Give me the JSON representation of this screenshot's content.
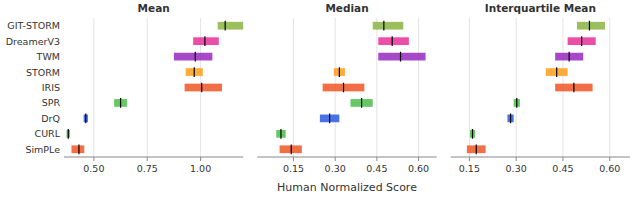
{
  "chart_data": [
    {
      "type": "bar",
      "orientation": "horizontal",
      "title": "Mean",
      "categories": [
        "GIT-STORM",
        "DreamerV3",
        "TWM",
        "STORM",
        "IRIS",
        "SPR",
        "DrQ",
        "CURL",
        "SimPLe"
      ],
      "values": [
        1.115,
        1.02,
        0.975,
        0.97,
        1.005,
        0.625,
        0.462,
        0.38,
        0.43
      ],
      "low": [
        1.08,
        0.965,
        0.875,
        0.93,
        0.925,
        0.595,
        0.452,
        0.372,
        0.395
      ],
      "high": [
        1.2,
        1.085,
        1.055,
        1.01,
        1.1,
        0.655,
        0.472,
        0.388,
        0.455
      ],
      "colors": [
        "#8db647",
        "#e8359a",
        "#9b2fc0",
        "#ffa020",
        "#f05a2a",
        "#50c050",
        "#3060e0",
        "#50c050",
        "#f05a2a"
      ],
      "xlim": [
        0.36,
        1.2
      ],
      "xticks": [
        {
          "value": 0.5,
          "label": "0.50"
        },
        0.75,
        {
          "value": 1.0,
          "label": "1.00"
        }
      ],
      "grid": true
    },
    {
      "type": "bar",
      "orientation": "horizontal",
      "title": "Median",
      "xlabel": "Human Normalized Score",
      "categories": [
        "GIT-STORM",
        "DreamerV3",
        "TWM",
        "STORM",
        "IRIS",
        "SPR",
        "DrQ",
        "CURL",
        "SimPLe"
      ],
      "values": [
        0.475,
        0.505,
        0.535,
        0.315,
        0.33,
        0.395,
        0.28,
        0.105,
        0.142
      ],
      "low": [
        0.435,
        0.455,
        0.455,
        0.295,
        0.255,
        0.355,
        0.245,
        0.088,
        0.1
      ],
      "high": [
        0.545,
        0.565,
        0.625,
        0.335,
        0.405,
        0.435,
        0.315,
        0.122,
        0.18
      ],
      "colors": [
        "#8db647",
        "#e8359a",
        "#9b2fc0",
        "#ffa020",
        "#f05a2a",
        "#50c050",
        "#3060e0",
        "#50c050",
        "#f05a2a"
      ],
      "xlim": [
        0.02,
        0.665
      ],
      "xticks": [
        0.15,
        {
          "value": 0.3,
          "label": "0.30"
        },
        0.45,
        {
          "value": 0.6,
          "label": "0.60"
        }
      ],
      "grid": true,
      "tick_labels": "x"
    },
    {
      "type": "bar",
      "orientation": "horizontal",
      "title": "Interquartile Mean",
      "categories": [
        "GIT-STORM",
        "DreamerV3",
        "TWM",
        "STORM",
        "IRIS",
        "SPR",
        "DrQ",
        "CURL",
        "SimPLe"
      ],
      "values": [
        0.535,
        0.51,
        0.47,
        0.43,
        0.485,
        0.302,
        0.282,
        0.16,
        0.172
      ],
      "low": [
        0.495,
        0.465,
        0.425,
        0.395,
        0.425,
        0.292,
        0.272,
        0.152,
        0.142
      ],
      "high": [
        0.585,
        0.555,
        0.515,
        0.465,
        0.545,
        0.312,
        0.292,
        0.168,
        0.202
      ],
      "colors": [
        "#8db647",
        "#e8359a",
        "#9b2fc0",
        "#ffa020",
        "#f05a2a",
        "#50c050",
        "#3060e0",
        "#50c050",
        "#f05a2a"
      ],
      "xlim": [
        0.09,
        0.665
      ],
      "xticks": [
        0.15,
        {
          "value": 0.3,
          "label": "0.30"
        },
        0.45,
        {
          "value": 0.6,
          "label": "0.60"
        }
      ],
      "grid": true,
      "tick_labels": "x"
    }
  ]
}
